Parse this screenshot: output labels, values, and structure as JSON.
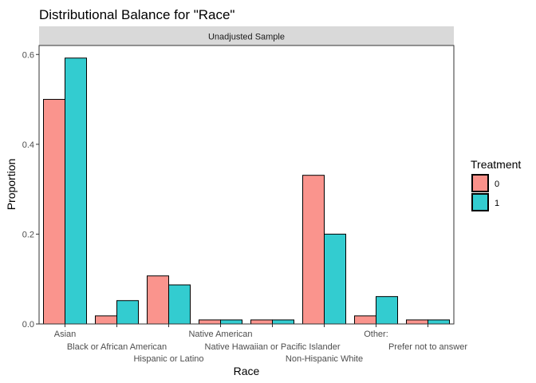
{
  "chart_data": {
    "type": "bar",
    "title": "Distributional Balance for \"Race\"",
    "facet_label": "Unadjusted Sample",
    "xlabel": "Race",
    "ylabel": "Proportion",
    "ylim": [
      0,
      0.62
    ],
    "yticks": [
      0.0,
      0.2,
      0.4,
      0.6
    ],
    "ytick_labels": [
      "0.0",
      "0.2",
      "0.4",
      "0.6"
    ],
    "grid": false,
    "categories": [
      "Asian",
      "Black or African American",
      "Hispanic or Latino",
      "Native American",
      "Native Hawaiian or Pacific Islander",
      "Non-Hispanic White",
      "Other:",
      "Prefer not to answer"
    ],
    "series": [
      {
        "name": "0",
        "color": "#F8766D",
        "values": [
          0.5,
          0.018,
          0.107,
          0.009,
          0.009,
          0.331,
          0.018,
          0.009
        ]
      },
      {
        "name": "1",
        "color": "#00BFC4",
        "values": [
          0.592,
          0.052,
          0.087,
          0.009,
          0.009,
          0.2,
          0.061,
          0.009
        ]
      }
    ],
    "legend": {
      "title": "Treatment",
      "position": "right",
      "labels": [
        "0",
        "1"
      ]
    }
  }
}
